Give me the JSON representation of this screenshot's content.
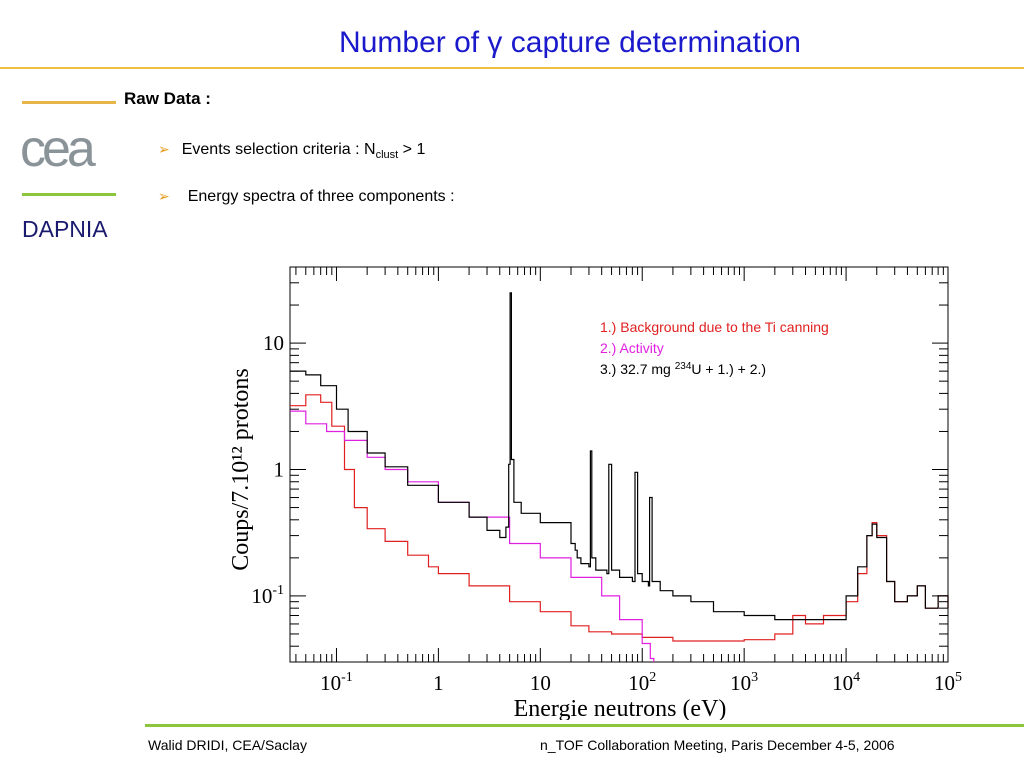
{
  "slide": {
    "title": "Number of γ capture determination",
    "section_title": "Raw Data :",
    "org_name": "DAPNIA",
    "logo_text": "cea",
    "bullet1_prefix": "Events selection criteria : N",
    "bullet1_sub": "clust",
    "bullet1_suffix": " > 1",
    "bullet2": "Energy spectra of three components :",
    "footer_left": "Walid DRIDI, CEA/Saclay",
    "footer_right": "n_TOF Collaboration Meeting, Paris December 4-5, 2006",
    "bullet_icon": "arrow-bullet-icon",
    "colors": {
      "title": "#1a1acc",
      "accent_orange": "#e8b54a",
      "accent_green": "#8cc63f",
      "bullet": "#e69a1c"
    }
  },
  "chart_data": {
    "type": "line",
    "xlabel": "Energie neutrons (eV)",
    "ylabel": "Coups/7.10¹² protons",
    "xscale": "log",
    "yscale": "log",
    "xlim": [
      0.035,
      100000
    ],
    "ylim": [
      0.03,
      40
    ],
    "x_ticks": [
      {
        "value": 0.1,
        "mant": "10",
        "exp": "-1"
      },
      {
        "value": 1,
        "mant": "1",
        "exp": ""
      },
      {
        "value": 10,
        "mant": "10",
        "exp": ""
      },
      {
        "value": 100,
        "mant": "10",
        "exp": "2"
      },
      {
        "value": 1000,
        "mant": "10",
        "exp": "3"
      },
      {
        "value": 10000,
        "mant": "10",
        "exp": "4"
      },
      {
        "value": 100000,
        "mant": "10",
        "exp": "5"
      }
    ],
    "y_ticks": [
      {
        "value": 0.1,
        "mant": "10",
        "exp": "-1"
      },
      {
        "value": 1,
        "mant": "1",
        "exp": ""
      },
      {
        "value": 10,
        "mant": "10",
        "exp": ""
      }
    ],
    "legend_position": "top-right",
    "legend": [
      {
        "label": "1.) Background due to the Ti canning",
        "color": "#e02020"
      },
      {
        "label": "2.) Activity",
        "color": "#e020e0"
      },
      {
        "label_prefix": "3.) 32.7 mg ",
        "label_sup": "234",
        "label_suffix": "U + 1.) + 2.)",
        "color": "#000000"
      }
    ],
    "series": [
      {
        "name": "1.) Background due to the Ti canning",
        "color": "#e02020",
        "x": [
          0.035,
          0.05,
          0.07,
          0.09,
          0.12,
          0.15,
          0.2,
          0.3,
          0.5,
          0.8,
          1,
          2,
          5,
          10,
          20,
          30,
          50,
          100,
          200,
          500,
          1000,
          2000,
          3000,
          4000,
          6000,
          10000,
          13000,
          16000,
          18000,
          20000,
          25000,
          30000,
          40000,
          50000,
          60000,
          80000,
          100000
        ],
        "y": [
          3.2,
          3.9,
          3.4,
          2.2,
          1.0,
          0.5,
          0.34,
          0.27,
          0.21,
          0.17,
          0.15,
          0.12,
          0.09,
          0.075,
          0.058,
          0.052,
          0.05,
          0.047,
          0.044,
          0.044,
          0.045,
          0.05,
          0.07,
          0.06,
          0.07,
          0.09,
          0.15,
          0.3,
          0.38,
          0.3,
          0.13,
          0.09,
          0.1,
          0.12,
          0.08,
          0.1,
          0.08
        ]
      },
      {
        "name": "2.) Activity",
        "color": "#e020e0",
        "x": [
          0.035,
          0.05,
          0.08,
          0.12,
          0.2,
          0.3,
          0.5,
          1,
          2,
          5,
          10,
          20,
          40,
          60,
          100,
          120,
          130
        ],
        "y": [
          2.9,
          2.3,
          2.0,
          1.7,
          1.25,
          1.0,
          0.8,
          0.55,
          0.42,
          0.26,
          0.2,
          0.14,
          0.1,
          0.065,
          0.042,
          0.032,
          0.03
        ]
      },
      {
        "name": "3.) 32.7 mg 234U + 1.) + 2.)",
        "color": "#000000",
        "x": [
          0.035,
          0.05,
          0.07,
          0.1,
          0.13,
          0.2,
          0.3,
          0.5,
          1,
          2,
          3,
          4,
          4.6,
          4.9,
          5.05,
          5.2,
          5.5,
          6.5,
          10,
          20,
          22,
          23,
          25,
          30,
          31,
          32,
          35,
          45,
          47,
          50,
          60,
          80,
          85,
          90,
          100,
          115,
          118,
          125,
          150,
          200,
          300,
          500,
          1000,
          2000,
          3000,
          5000,
          10000,
          13000,
          16000,
          18000,
          20000,
          25000,
          30000,
          40000,
          50000,
          60000,
          80000,
          100000
        ],
        "y": [
          6.0,
          5.6,
          4.6,
          3.0,
          2.0,
          1.35,
          1.05,
          0.75,
          0.55,
          0.42,
          0.33,
          0.29,
          0.35,
          1.1,
          25,
          1.2,
          0.55,
          0.45,
          0.38,
          0.26,
          0.23,
          0.2,
          0.18,
          0.17,
          1.4,
          0.2,
          0.16,
          0.15,
          1.1,
          0.16,
          0.14,
          0.13,
          0.95,
          0.15,
          0.13,
          0.12,
          0.6,
          0.13,
          0.11,
          0.1,
          0.09,
          0.075,
          0.07,
          0.065,
          0.065,
          0.065,
          0.1,
          0.17,
          0.3,
          0.37,
          0.29,
          0.13,
          0.09,
          0.1,
          0.12,
          0.08,
          0.1,
          0.08
        ]
      }
    ]
  }
}
